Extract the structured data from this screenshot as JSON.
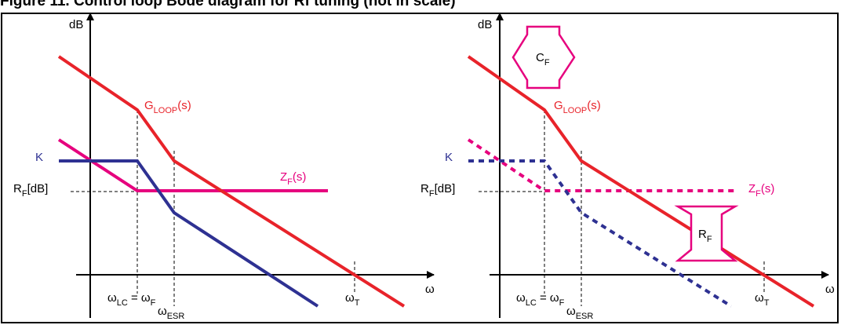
{
  "title": "Figure 11. Control loop Bode diagram for Rf tuning (not in scale)",
  "colors": {
    "gloop": "#e8232a",
    "k": "#2e3192",
    "zf": "#e6007e",
    "axis": "#000000"
  },
  "left_panel": {
    "y_axis_label": "dB",
    "x_axis_label": "ω",
    "gloop": {
      "base": "G",
      "sub": "LOOP",
      "tail": "(s)"
    },
    "k_label": "K",
    "zf": {
      "base": "Z",
      "sub": "F",
      "tail": "(s)"
    },
    "rf_db": {
      "base": "R",
      "sub": "F",
      "tail": "[dB]"
    },
    "omega_lc": {
      "base": "ω",
      "sub": "LC",
      "tail": " = ω"
    },
    "omega_f_sub": "F",
    "omega_esr": {
      "base": "ω",
      "sub": "ESR"
    },
    "omega_t": {
      "base": "ω",
      "sub": "T"
    }
  },
  "right_panel": {
    "y_axis_label": "dB",
    "x_axis_label": "ω",
    "gloop": {
      "base": "G",
      "sub": "LOOP",
      "tail": "(s)"
    },
    "k_label": "K",
    "zf": {
      "base": "Z",
      "sub": "F",
      "tail": "(s)"
    },
    "rf_db": {
      "base": "R",
      "sub": "F",
      "tail": "[dB]"
    },
    "omega_lc": {
      "base": "ω",
      "sub": "LC",
      "tail": " = ω"
    },
    "omega_f_sub": "F",
    "omega_esr": {
      "base": "ω",
      "sub": "ESR"
    },
    "omega_t": {
      "base": "ω",
      "sub": "T"
    },
    "cf_arrow": {
      "base": "C",
      "sub": "F"
    },
    "rf_arrow": {
      "base": "R",
      "sub": "F"
    }
  }
}
